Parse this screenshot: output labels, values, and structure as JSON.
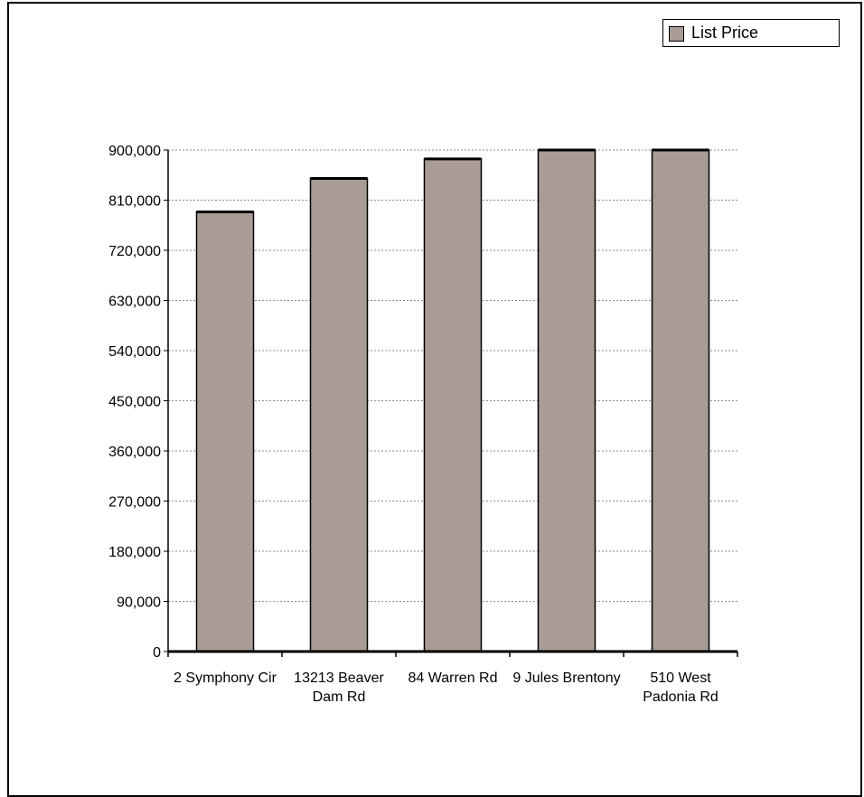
{
  "chart_data": {
    "type": "bar",
    "categories": [
      [
        "2 Symphony Cir"
      ],
      [
        "13213 Beaver",
        "Dam Rd"
      ],
      [
        "84 Warren Rd"
      ],
      [
        "9 Jules Brentony"
      ],
      [
        "510 West",
        "Padonia Rd"
      ]
    ],
    "series": [
      {
        "name": "List Price",
        "values": [
          789000,
          849000,
          884000,
          900000,
          900000
        ],
        "color": "#a89c95"
      }
    ],
    "yticks": [
      "0",
      "90,000",
      "180,000",
      "270,000",
      "360,000",
      "450,000",
      "540,000",
      "630,000",
      "720,000",
      "810,000",
      "900,000"
    ],
    "ylim": [
      0,
      900000
    ],
    "grid": true,
    "legend_position": "top-right"
  }
}
